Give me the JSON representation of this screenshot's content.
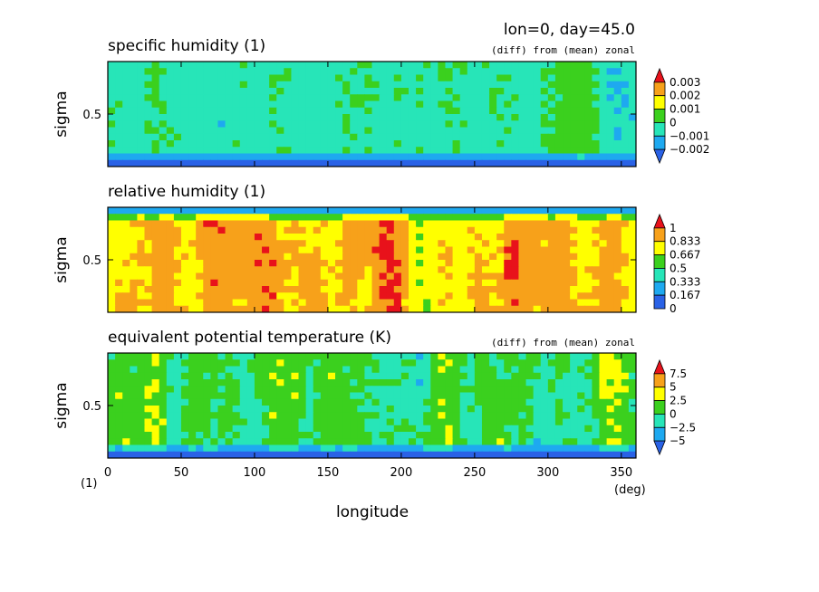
{
  "header": {
    "run_info": "lon=0, day=45.0"
  },
  "x_axis": {
    "label": "longitude",
    "unit": "(deg)",
    "range": [
      0,
      360
    ],
    "ticks": [
      0,
      50,
      100,
      150,
      200,
      250,
      300,
      350
    ],
    "tick_labels": [
      "0",
      "50",
      "100",
      "150",
      "200",
      "250",
      "300",
      "350"
    ],
    "corner_unit": "(1)"
  },
  "chart_data": [
    {
      "type": "heatmap",
      "title": "specific humidity (1)",
      "subtitle": "(diff) from (mean) zonal",
      "ylabel": "sigma",
      "y_tick_labels": [
        "0.5"
      ],
      "colorbar": {
        "labels": [
          "0.003",
          "0.002",
          "0.001",
          "0",
          "−0.001",
          "−0.002"
        ],
        "levels": [
          -0.002,
          -0.001,
          0,
          0.001,
          0.002,
          0.003
        ],
        "colors": [
          "#2a62e6",
          "#1ea9f0",
          "#27e5b8",
          "#3bd01e",
          "#ffff00",
          "#f7a11a",
          "#e8121b"
        ],
        "extend": "both"
      },
      "field_seed": 7,
      "surface_band_value": -0.0025,
      "base_value": -0.0002,
      "amplitude": 0.0012
    },
    {
      "type": "heatmap",
      "title": "relative humidity (1)",
      "subtitle": "",
      "ylabel": "sigma",
      "y_tick_labels": [
        "0.5"
      ],
      "colorbar": {
        "labels": [
          "1",
          "0.833",
          "0.667",
          "0.5",
          "0.333",
          "0.167",
          "0"
        ],
        "levels": [
          0,
          0.167,
          0.333,
          0.5,
          0.667,
          0.833,
          1
        ],
        "colors": [
          "#2a62e6",
          "#1ea9f0",
          "#27e5b8",
          "#3bd01e",
          "#ffff00",
          "#f7a11a",
          "#e8121b"
        ],
        "extend": "max"
      },
      "field_seed": 13,
      "top_band_value": 0.1,
      "base_value": 0.68,
      "amplitude": 0.25
    },
    {
      "type": "heatmap",
      "title": "equivalent potential temperature (K)",
      "subtitle": "(diff) from (mean) zonal",
      "ylabel": "sigma",
      "y_tick_labels": [
        "0.5"
      ],
      "colorbar": {
        "labels": [
          "7.5",
          "5",
          "2.5",
          "0",
          "−2.5",
          "−5"
        ],
        "levels": [
          -5,
          -2.5,
          0,
          2.5,
          5,
          7.5
        ],
        "colors": [
          "#2a62e6",
          "#1ea9f0",
          "#27e5b8",
          "#3bd01e",
          "#ffff00",
          "#f7a11a",
          "#e8121b"
        ],
        "extend": "both"
      },
      "field_seed": 29,
      "surface_band_value": -6,
      "base_value": 0.5,
      "amplitude": 4.5
    }
  ]
}
